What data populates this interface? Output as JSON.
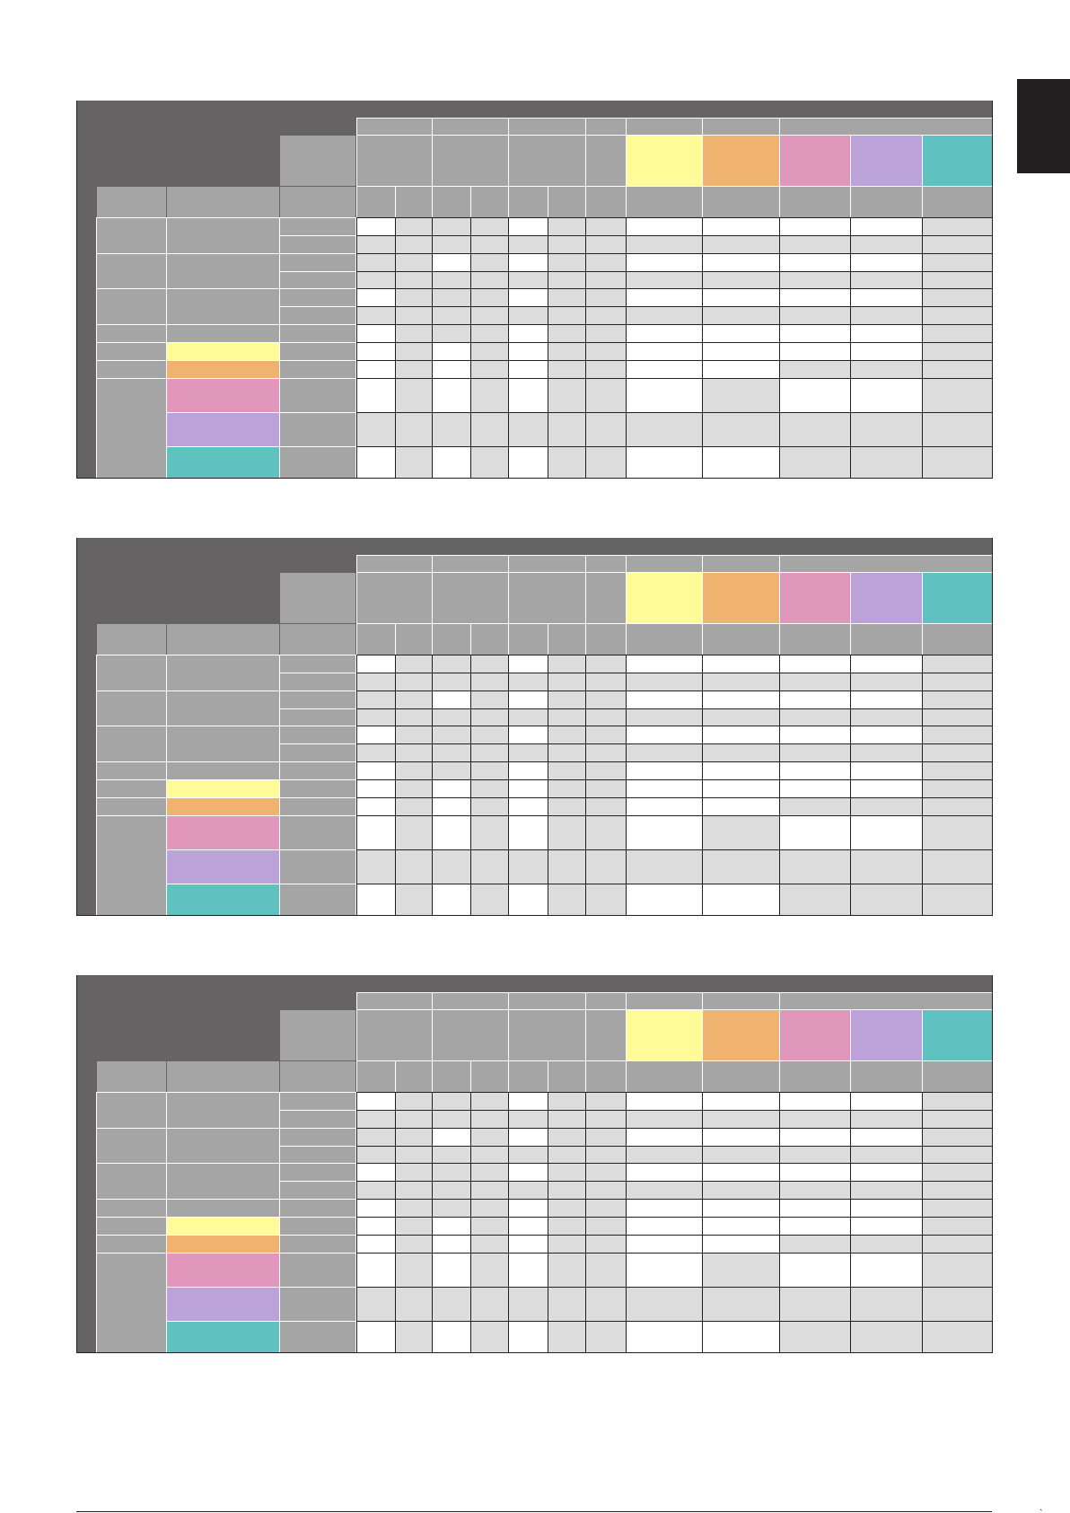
{
  "page": {
    "corner_mark": "ˎ"
  },
  "tables": [
    {
      "id": "table-1"
    },
    {
      "id": "table-2"
    },
    {
      "id": "table-3"
    }
  ],
  "palette": {
    "dark": "#656364",
    "mid": "#a6a5a6",
    "light": "#dcdcdc",
    "white": "#ffffff",
    "yellow": "#fffb99",
    "orange": "#efb36f",
    "pink": "#e196bc",
    "purple": "#bba2d8",
    "teal": "#60c1c1",
    "tab": "#231f20"
  },
  "color_columns": [
    "yellow",
    "orange",
    "pink",
    "purple",
    "teal"
  ],
  "color_rows": [
    "yellow",
    "orange",
    "pink",
    "purple",
    "teal"
  ]
}
